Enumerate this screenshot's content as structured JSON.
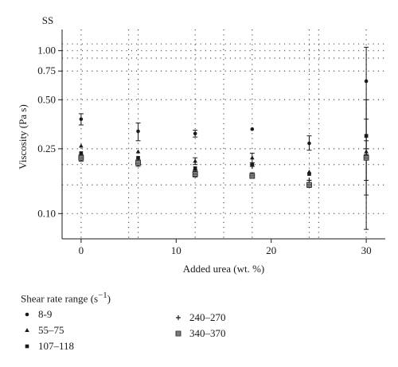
{
  "chart_data": {
    "type": "scatter",
    "corner_label": "SS",
    "xlabel": "Added urea (wt. %)",
    "ylabel": "Viscosity (Pa s)",
    "xlim": [
      -2,
      32
    ],
    "ylim": [
      0.07,
      1.35
    ],
    "yscale": "log",
    "x_ticks": [
      0,
      10,
      20,
      30
    ],
    "x_tick_labels": [
      "0",
      "10",
      "20",
      "30"
    ],
    "y_ticks": [
      0.1,
      0.25,
      0.5,
      0.75,
      1.0
    ],
    "y_tick_labels": [
      "0.10",
      "0.25",
      "0.50",
      "0.75",
      "1.00"
    ],
    "grid": "dotted",
    "legend_title": "Shear rate range (s",
    "legend_title_sup": "−1",
    "legend_title_close": ")",
    "legend_position": "bottom-left",
    "series": [
      {
        "name": "8-9",
        "marker": "circle",
        "x": [
          0,
          6,
          12,
          18,
          24,
          30
        ],
        "y": [
          0.38,
          0.32,
          0.31,
          0.33,
          0.27,
          0.65
        ],
        "err_low": [
          0.35,
          0.28,
          0.295,
          null,
          0.245,
          0.08
        ],
        "err_high": [
          0.41,
          0.36,
          0.325,
          null,
          0.3,
          1.05
        ]
      },
      {
        "name": "55–75",
        "marker": "triangle",
        "x": [
          0,
          6,
          12,
          18,
          24,
          30
        ],
        "y": [
          0.26,
          0.24,
          0.21,
          0.22,
          0.18,
          0.24
        ],
        "err_low": [
          null,
          null,
          0.2,
          0.205,
          null,
          null
        ],
        "err_high": [
          null,
          null,
          0.22,
          0.235,
          null,
          null
        ]
      },
      {
        "name": "107–118",
        "marker": "square",
        "x": [
          0,
          6,
          12,
          18,
          24,
          30
        ],
        "y": [
          0.235,
          0.22,
          0.19,
          0.2,
          0.175,
          0.3
        ],
        "err_low": [
          null,
          null,
          null,
          null,
          null,
          0.25
        ],
        "err_high": [
          null,
          null,
          null,
          null,
          null,
          0.38
        ]
      },
      {
        "name": "240–270",
        "marker": "plus",
        "x": [
          0,
          6,
          12,
          18,
          24,
          30
        ],
        "y": [
          0.225,
          0.21,
          0.185,
          0.195,
          0.16,
          0.23
        ],
        "err_low": [
          null,
          null,
          null,
          null,
          null,
          0.13
        ],
        "err_high": [
          null,
          null,
          null,
          null,
          null,
          0.5
        ]
      },
      {
        "name": "340–370",
        "marker": "square-hatched",
        "x": [
          0,
          6,
          12,
          18,
          24,
          30
        ],
        "y": [
          0.22,
          0.205,
          0.175,
          0.17,
          0.15,
          0.22
        ],
        "err_low": [
          0.21,
          0.195,
          0.168,
          0.165,
          0.145,
          0.16
        ],
        "err_high": [
          0.23,
          0.215,
          0.182,
          0.178,
          0.155,
          0.28
        ]
      }
    ]
  },
  "colors": {
    "ink": "#1a1a1a",
    "grid": "#555555",
    "hatched_fill": "#9a9a9a"
  }
}
